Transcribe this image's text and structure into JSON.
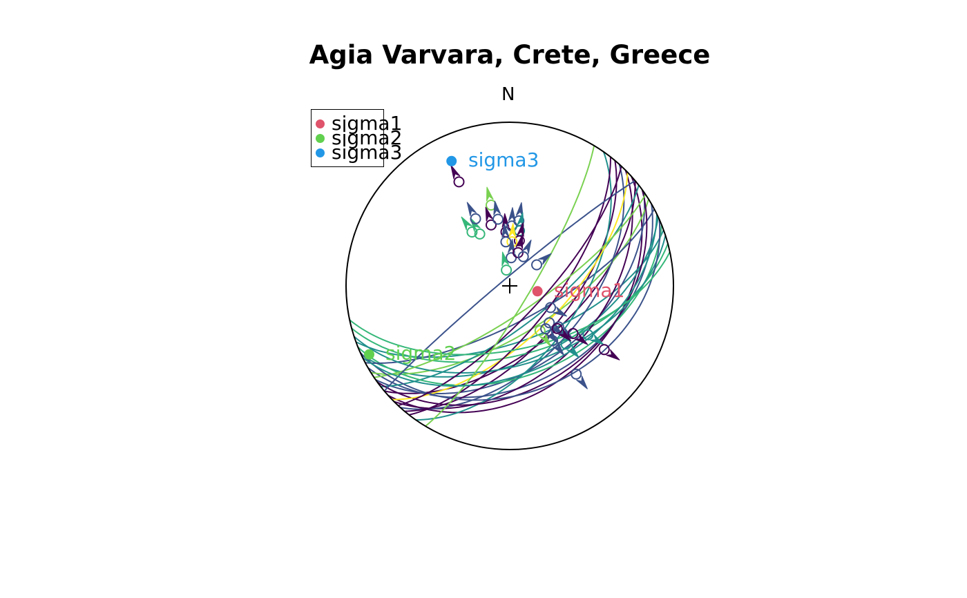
{
  "chart_data": {
    "type": "scatter",
    "subtype": "stereonet (lower-hemisphere equal-area projection) of fault planes with slip vectors",
    "title": "Agia Varvara, Crete, Greece",
    "north_label": "N",
    "legend": {
      "placement": "top-left",
      "entries": [
        {
          "label": "sigma1",
          "color": "#DF536B"
        },
        {
          "label": "sigma2",
          "color": "#61D04F"
        },
        {
          "label": "sigma3",
          "color": "#2297E6"
        }
      ]
    },
    "principal_axes": [
      {
        "name": "sigma1",
        "label": "sigma1",
        "color": "#DF536B",
        "azimuth": 101,
        "plunge": 76
      },
      {
        "name": "sigma2",
        "label": "sigma2",
        "color": "#61D04F",
        "azimuth": 244,
        "plunge": 5
      },
      {
        "name": "sigma3",
        "label": "sigma3",
        "color": "#2297E6",
        "azimuth": 335,
        "plunge": 17
      }
    ],
    "palette": "viridis",
    "colors": [
      "#440154",
      "#3B528B",
      "#21908C",
      "#35B779",
      "#7AD151",
      "#FDE725"
    ],
    "faults": [
      {
        "dip_direction": 138,
        "dip": 36,
        "color": "#440154"
      },
      {
        "dip_direction": 150,
        "dip": 40,
        "color": "#3B528B"
      },
      {
        "dip_direction": 155,
        "dip": 52,
        "color": "#21908C"
      },
      {
        "dip_direction": 140,
        "dip": 58,
        "color": "#440154"
      },
      {
        "dip_direction": 160,
        "dip": 62,
        "color": "#21908C"
      },
      {
        "dip_direction": 145,
        "dip": 48,
        "color": "#3B528B"
      },
      {
        "dip_direction": 165,
        "dip": 55,
        "color": "#35B779"
      },
      {
        "dip_direction": 135,
        "dip": 45,
        "color": "#440154"
      },
      {
        "dip_direction": 148,
        "dip": 66,
        "color": "#7AD151"
      },
      {
        "dip_direction": 142,
        "dip": 70,
        "color": "#21908C"
      },
      {
        "dip_direction": 132,
        "dip": 52,
        "color": "#3B528B"
      },
      {
        "dip_direction": 158,
        "dip": 44,
        "color": "#35B779"
      },
      {
        "dip_direction": 130,
        "dip": 60,
        "color": "#440154"
      },
      {
        "dip_direction": 152,
        "dip": 72,
        "color": "#3B528B"
      },
      {
        "dip_direction": 125,
        "dip": 55,
        "color": "#21908C"
      },
      {
        "dip_direction": 144,
        "dip": 38,
        "color": "#440154"
      },
      {
        "dip_direction": 136,
        "dip": 64,
        "color": "#FDE725"
      },
      {
        "dip_direction": 162,
        "dip": 50,
        "color": "#21908C"
      },
      {
        "dip_direction": 128,
        "dip": 68,
        "color": "#440154"
      },
      {
        "dip_direction": 146,
        "dip": 76,
        "color": "#7AD151"
      },
      {
        "dip_direction": 156,
        "dip": 35,
        "color": "#3B528B"
      },
      {
        "dip_direction": 320,
        "dip": 86,
        "color": "#3B528B"
      },
      {
        "dip_direction": 133,
        "dip": 74,
        "color": "#440154"
      },
      {
        "dip_direction": 168,
        "dip": 58,
        "color": "#35B779"
      },
      {
        "dip_direction": 121,
        "dip": 80,
        "color": "#7AD151"
      },
      {
        "dip_direction": 154,
        "dip": 46,
        "color": "#21908C"
      }
    ],
    "slip_points": [
      {
        "azimuth": 334,
        "plunge": 30,
        "color": "#440154"
      },
      {
        "azimuth": 347,
        "plunge": 48,
        "color": "#7AD151"
      },
      {
        "azimuth": 343,
        "plunge": 58,
        "color": "#440154"
      },
      {
        "azimuth": 350,
        "plunge": 56,
        "color": "#3B528B"
      },
      {
        "azimuth": 356,
        "plunge": 63,
        "color": "#440154"
      },
      {
        "azimuth": 2,
        "plunge": 60,
        "color": "#3B528B"
      },
      {
        "azimuth": 8,
        "plunge": 57,
        "color": "#3B528B"
      },
      {
        "azimuth": 10,
        "plunge": 62,
        "color": "#21908C"
      },
      {
        "azimuth": 12,
        "plunge": 67,
        "color": "#440154"
      },
      {
        "azimuth": 3,
        "plunge": 68,
        "color": "#FDE725"
      },
      {
        "azimuth": 330,
        "plunge": 60,
        "color": "#35B779"
      },
      {
        "azimuth": 325,
        "plunge": 57,
        "color": "#35B779"
      },
      {
        "azimuth": 333,
        "plunge": 52,
        "color": "#3B528B"
      },
      {
        "azimuth": 355,
        "plunge": 68,
        "color": "#3B528B"
      },
      {
        "azimuth": 3,
        "plunge": 76,
        "color": "#3B528B"
      },
      {
        "azimuth": 14,
        "plunge": 73,
        "color": "#440154"
      },
      {
        "azimuth": 25,
        "plunge": 74,
        "color": "#3B528B"
      },
      {
        "azimuth": 348,
        "plunge": 82,
        "color": "#35B779"
      },
      {
        "azimuth": 52,
        "plunge": 73,
        "color": "#3B528B"
      },
      {
        "azimuth": 118,
        "plunge": 67,
        "color": "#3B528B"
      },
      {
        "azimuth": 130,
        "plunge": 58,
        "color": "#3B528B"
      },
      {
        "azimuth": 133,
        "plunge": 63,
        "color": "#3B528B"
      },
      {
        "azimuth": 127,
        "plunge": 50,
        "color": "#440154"
      },
      {
        "azimuth": 136,
        "plunge": 49,
        "color": "#21908C"
      },
      {
        "azimuth": 122,
        "plunge": 43,
        "color": "#21908C"
      },
      {
        "azimuth": 142,
        "plunge": 55,
        "color": "#3B528B"
      },
      {
        "azimuth": 132,
        "plunge": 58,
        "color": "#440154"
      },
      {
        "azimuth": 124,
        "plunge": 31,
        "color": "#440154"
      },
      {
        "azimuth": 143,
        "plunge": 33,
        "color": "#3B528B"
      },
      {
        "azimuth": 146,
        "plunge": 63,
        "color": "#7AD151"
      },
      {
        "azimuth": 140,
        "plunge": 62,
        "color": "#3B528B"
      }
    ]
  }
}
